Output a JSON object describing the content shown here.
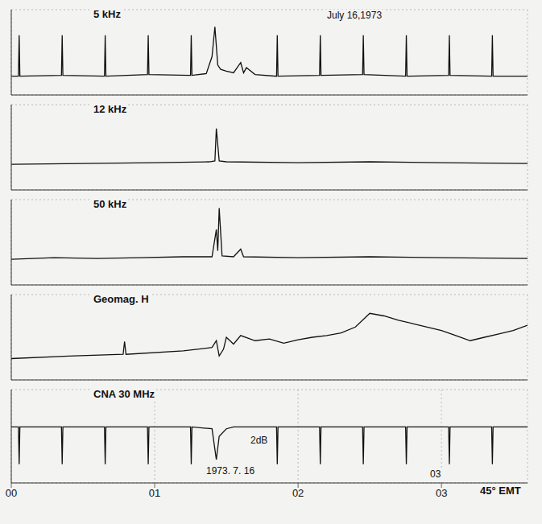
{
  "chart_data": [
    {
      "type": "line",
      "title": "5 kHz",
      "annotations": [
        "July 16,1973"
      ],
      "color": "#111111",
      "grid": true,
      "tick_labels": false,
      "xlim": [
        0,
        3.6
      ],
      "xticks": [
        0,
        1,
        2,
        3
      ],
      "ylim": [
        0,
        10
      ],
      "yticks": [
        0,
        2.5,
        5,
        7.5,
        10
      ],
      "x": [
        0,
        0.05,
        0.055,
        0.06,
        0.35,
        0.355,
        0.36,
        0.65,
        0.655,
        0.66,
        0.95,
        0.955,
        0.96,
        1.25,
        1.255,
        1.26,
        1.36,
        1.4,
        1.42,
        1.44,
        1.46,
        1.5,
        1.55,
        1.6,
        1.62,
        1.64,
        1.7,
        1.85,
        1.855,
        1.86,
        2.15,
        2.155,
        2.16,
        2.45,
        2.455,
        2.46,
        2.75,
        2.755,
        2.76,
        3.05,
        3.055,
        3.06,
        3.35,
        3.355,
        3.36,
        3.6
      ],
      "values": [
        2.2,
        2.2,
        7,
        2.2,
        2.3,
        7,
        2.3,
        2.2,
        7,
        2.2,
        2.4,
        7,
        2.4,
        2.3,
        7,
        2.3,
        2.5,
        4.5,
        8,
        3.5,
        3,
        2.8,
        2.6,
        3.8,
        2.6,
        3.2,
        2.4,
        2.2,
        7,
        2.2,
        2.3,
        7,
        2.3,
        2.4,
        7,
        2.4,
        2.2,
        7,
        2.2,
        2.3,
        7,
        2.3,
        2.2,
        7,
        2.2,
        2.2
      ]
    },
    {
      "type": "line",
      "title": "12 kHz",
      "color": "#111111",
      "grid": true,
      "tick_labels": false,
      "xlim": [
        0,
        3.6
      ],
      "xticks": [
        0,
        1,
        2,
        3
      ],
      "ylim": [
        0,
        10
      ],
      "yticks": [
        0,
        2.5,
        5,
        7.5,
        10
      ],
      "x": [
        0,
        0.5,
        1.0,
        1.38,
        1.42,
        1.43,
        1.45,
        1.5,
        2.0,
        2.5,
        3.0,
        3.6
      ],
      "values": [
        3,
        3.1,
        3.2,
        3.3,
        3.4,
        7.2,
        3.4,
        3.3,
        3.2,
        3.3,
        3.2,
        3.1
      ]
    },
    {
      "type": "line",
      "title": "50 kHz",
      "color": "#111111",
      "grid": true,
      "tick_labels": false,
      "xlim": [
        0,
        3.6
      ],
      "xticks": [
        0,
        1,
        2,
        3
      ],
      "ylim": [
        0,
        10
      ],
      "yticks": [
        0,
        2.5,
        5,
        7.5,
        10
      ],
      "x": [
        0,
        0.3,
        0.6,
        0.9,
        1.2,
        1.4,
        1.43,
        1.44,
        1.45,
        1.47,
        1.55,
        1.6,
        1.62,
        2.0,
        2.5,
        3.0,
        3.6
      ],
      "values": [
        3,
        3.2,
        3.1,
        3.2,
        3.3,
        3.3,
        6.5,
        4,
        9,
        3.4,
        3.3,
        4.2,
        3.3,
        3.2,
        3.3,
        3.2,
        3.1
      ]
    },
    {
      "type": "line",
      "title": "Geomag. H",
      "color": "#111111",
      "grid": true,
      "tick_labels": false,
      "xlim": [
        0,
        3.6
      ],
      "xticks": [
        0,
        1,
        2,
        3
      ],
      "ylim": [
        0,
        10
      ],
      "yticks": [
        0,
        2.5,
        5,
        7.5,
        10
      ],
      "x": [
        0,
        0.4,
        0.78,
        0.79,
        0.8,
        1.2,
        1.4,
        1.43,
        1.45,
        1.48,
        1.5,
        1.55,
        1.6,
        1.7,
        1.8,
        1.9,
        2.0,
        2.1,
        2.2,
        2.3,
        2.4,
        2.5,
        2.6,
        2.7,
        2.8,
        2.9,
        3.0,
        3.1,
        3.2,
        3.3,
        3.4,
        3.5,
        3.6
      ],
      "values": [
        2.5,
        2.8,
        3,
        4.5,
        3,
        3.4,
        3.8,
        4.6,
        2.8,
        3.6,
        5.0,
        4.2,
        5.2,
        4.6,
        4.8,
        4.3,
        4.7,
        5.0,
        5.2,
        5.5,
        6.2,
        7.8,
        7.5,
        7.0,
        6.6,
        6.2,
        5.8,
        5.2,
        4.6,
        5.0,
        5.4,
        5.8,
        6.4
      ]
    },
    {
      "type": "line",
      "title": "CNA 30 MHz",
      "annotations": [
        "2dB",
        "1973. 7. 16",
        "03"
      ],
      "xlabel": "45° EMT",
      "color": "#111111",
      "grid": true,
      "tick_labels": "x",
      "xlim": [
        0,
        3.6
      ],
      "xticks": [
        {
          "value": 0,
          "label": "00"
        },
        {
          "value": 1,
          "label": "01"
        },
        {
          "value": 2,
          "label": "02"
        },
        {
          "value": 3,
          "label": "03"
        }
      ],
      "ylim": [
        0,
        10
      ],
      "yticks": [
        0,
        2.5,
        5,
        7.5,
        10
      ],
      "x": [
        0,
        0.05,
        0.055,
        0.06,
        0.35,
        0.355,
        0.36,
        0.65,
        0.655,
        0.66,
        0.95,
        0.955,
        0.96,
        1.25,
        1.255,
        1.26,
        1.4,
        1.43,
        1.45,
        1.5,
        1.55,
        1.85,
        1.855,
        1.86,
        2.15,
        2.155,
        2.16,
        2.45,
        2.455,
        2.46,
        2.75,
        2.755,
        2.76,
        3.05,
        3.055,
        3.06,
        3.35,
        3.355,
        3.36,
        3.6
      ],
      "values": [
        6,
        6,
        2,
        6,
        6,
        2,
        6,
        6,
        2,
        6,
        6,
        2,
        6,
        6,
        2,
        6,
        5.8,
        2.5,
        5,
        5.8,
        6,
        6,
        2,
        6,
        6,
        2,
        6,
        6,
        2,
        6,
        6,
        2,
        6,
        6,
        2,
        6,
        6,
        2,
        6,
        6
      ]
    }
  ]
}
